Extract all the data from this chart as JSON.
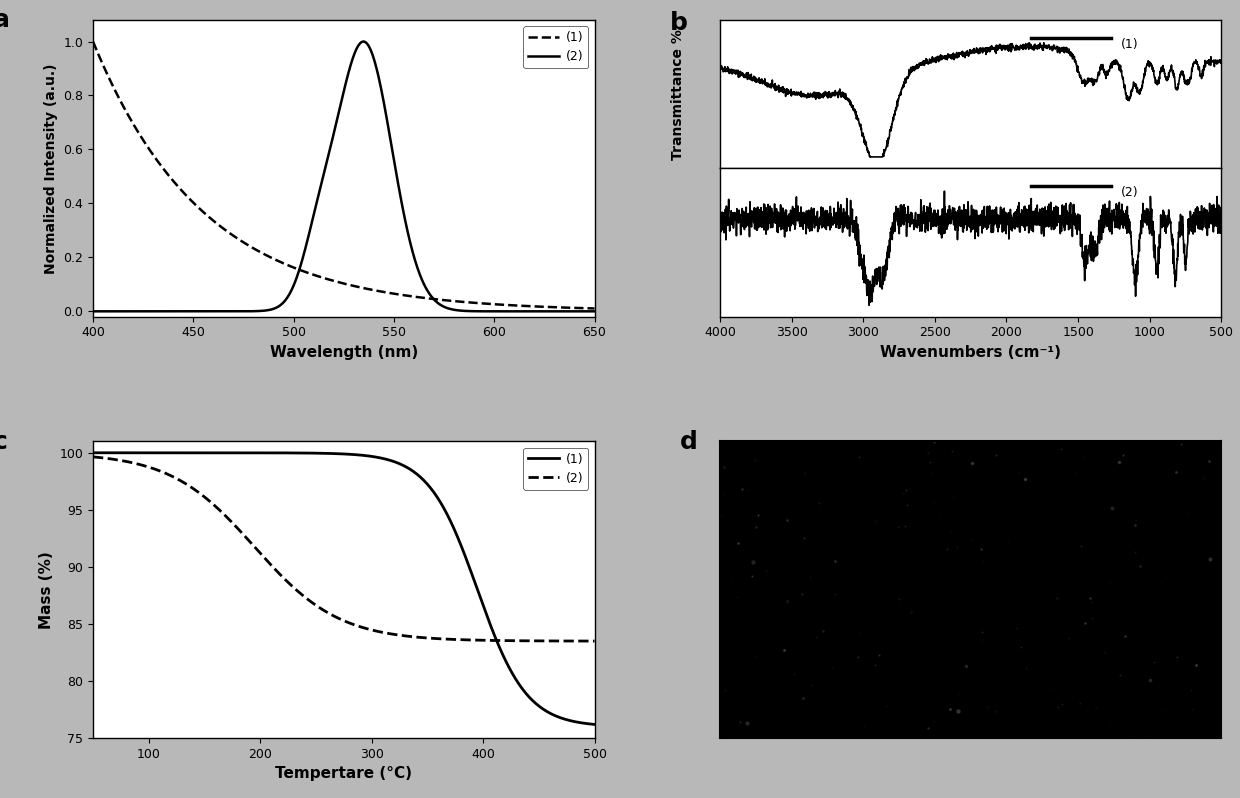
{
  "panel_a": {
    "label": "a",
    "xlabel": "Wavelength (nm)",
    "ylabel": "Normalized Intensity (a.u.)",
    "xlim": [
      400,
      650
    ],
    "ylim": [
      -0.02,
      1.08
    ],
    "yticks": [
      0.0,
      0.2,
      0.4,
      0.6,
      0.8,
      1.0
    ],
    "xticks": [
      400,
      450,
      500,
      550,
      600,
      650
    ],
    "legend1": "(1)",
    "legend2": "(2)"
  },
  "panel_b": {
    "label": "b",
    "xlabel": "Wavenumbers (cm⁻¹)",
    "ylabel": "Transmittance %",
    "xlim": [
      4000,
      500
    ],
    "xticks": [
      4000,
      3500,
      3000,
      2500,
      2000,
      1500,
      1000,
      500
    ],
    "legend1": "(1)",
    "legend2": "(2)"
  },
  "panel_c": {
    "label": "c",
    "xlabel": "Tempertare (°C)",
    "ylabel": "Mass (%)",
    "xlim": [
      50,
      500
    ],
    "ylim": [
      75,
      101
    ],
    "yticks": [
      75,
      80,
      85,
      90,
      95,
      100
    ],
    "xticks": [
      100,
      200,
      300,
      400,
      500
    ],
    "legend1": "(1)",
    "legend2": "(2)"
  },
  "panel_d": {
    "label": "d"
  },
  "fig_bg_color": "#b8b8b8",
  "plot_bg_color": "#ffffff",
  "line_color": "#000000",
  "label_fontsize": 18,
  "tick_fontsize": 9,
  "axis_label_fontsize": 11
}
